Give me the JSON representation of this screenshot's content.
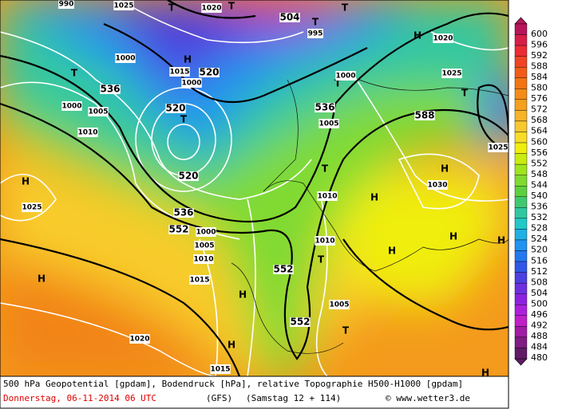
{
  "legend": {
    "levels": [
      600,
      596,
      592,
      588,
      584,
      580,
      576,
      572,
      568,
      564,
      560,
      556,
      552,
      548,
      544,
      540,
      536,
      532,
      528,
      524,
      520,
      516,
      512,
      508,
      504,
      500,
      496,
      492,
      488,
      484,
      480
    ],
    "colors": [
      "#b8145a",
      "#d81e48",
      "#ec2c34",
      "#f04424",
      "#f25c18",
      "#f27414",
      "#f48c18",
      "#f4a020",
      "#f6b428",
      "#f8c830",
      "#f8dc28",
      "#f0ee10",
      "#c8ec10",
      "#a0e420",
      "#80da30",
      "#5ed040",
      "#40c870",
      "#30c8a0",
      "#22c8c8",
      "#20b0e4",
      "#2094f0",
      "#2478f0",
      "#3058e8",
      "#4c40e0",
      "#6c30e0",
      "#8c22e0",
      "#ac20dc",
      "#c020c8",
      "#a01ca4",
      "#801c84",
      "#601c64"
    ]
  },
  "map_labels": [
    "990",
    "1025",
    "1020",
    "T",
    "T",
    "504",
    "T",
    "T",
    "995",
    "H",
    "1020",
    "1000",
    "H",
    "T",
    "536",
    "1015",
    "520",
    "1000",
    "1025",
    "T",
    "1000",
    "536",
    "588",
    "1005",
    "1000",
    "1005",
    "520",
    "T",
    "1010",
    "H",
    "1030",
    "T",
    "520",
    "H",
    "1025",
    "536",
    "1010",
    "552",
    "1000",
    "H",
    "H",
    "H",
    "1010",
    "T",
    "H",
    "1005",
    "1010",
    "552",
    "H",
    "1015",
    "H",
    "1005",
    "552",
    "T",
    "H",
    "1020",
    "1015",
    "H",
    "T",
    "1025"
  ],
  "footer": {
    "line1": "500 hPa Geopotential [gpdam], Bodendruck [hPa], relative Topographie H500-H1000 [gpdam]",
    "date": "Donnerstag, 06-11-2014  06 UTC",
    "model": "(GFS)",
    "run": "(Samstag 12 + 114)",
    "credit": "© www.wetter3.de"
  }
}
